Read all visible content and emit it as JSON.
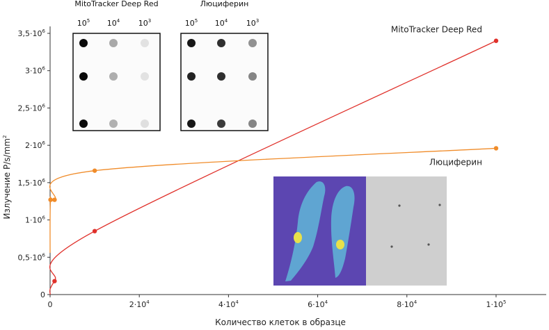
{
  "chart_data": {
    "type": "line",
    "xlabel": "Количество клеток в образце",
    "ylabel": "Излучение P/s/mm",
    "ylabel_exp": "2",
    "xlim": [
      0,
      105000
    ],
    "ylim": [
      0,
      3500000
    ],
    "x_ticks": [
      {
        "value": 0,
        "base": "0",
        "exp": ""
      },
      {
        "value": 20000,
        "base": "2·10",
        "exp": "4"
      },
      {
        "value": 40000,
        "base": "4·10",
        "exp": "4"
      },
      {
        "value": 60000,
        "base": "6·10",
        "exp": "4"
      },
      {
        "value": 80000,
        "base": "8·10",
        "exp": "4"
      },
      {
        "value": 100000,
        "base": "1·10",
        "exp": "5"
      }
    ],
    "y_ticks": [
      {
        "value": 0,
        "base": "0",
        "exp": ""
      },
      {
        "value": 500000,
        "base": "0,5·10",
        "exp": "6"
      },
      {
        "value": 1000000,
        "base": "1·10",
        "exp": "6"
      },
      {
        "value": 1500000,
        "base": "1,5·10",
        "exp": "6"
      },
      {
        "value": 2000000,
        "base": "2·10",
        "exp": "6"
      },
      {
        "value": 2500000,
        "base": "2,5·10",
        "exp": "6"
      },
      {
        "value": 3000000,
        "base": "3·10",
        "exp": "6"
      },
      {
        "value": 3500000,
        "base": "3,5·10",
        "exp": "6"
      }
    ],
    "series": [
      {
        "name": "MitoTracker Deep Red",
        "color": "#e0312b",
        "x": [
          0,
          1000,
          10000,
          100000
        ],
        "y": [
          0,
          180000,
          850000,
          3400000
        ]
      },
      {
        "name": "Люциферин",
        "color": "#f08c2a",
        "x": [
          0,
          100,
          1000,
          10000,
          100000
        ],
        "y": [
          560000,
          1270000,
          1270000,
          1660000,
          1960000
        ]
      }
    ],
    "insets": [
      {
        "title": "MitoTracker Deep Red",
        "columns": [
          {
            "base": "10",
            "exp": "5"
          },
          {
            "base": "10",
            "exp": "4"
          },
          {
            "base": "10",
            "exp": "3"
          }
        ],
        "row_intensity": [
          [
            1.0,
            0.35,
            0.12
          ],
          [
            1.0,
            0.33,
            0.12
          ],
          [
            1.0,
            0.32,
            0.13
          ]
        ]
      },
      {
        "title": "Люциферин",
        "columns": [
          {
            "base": "10",
            "exp": "5"
          },
          {
            "base": "10",
            "exp": "4"
          },
          {
            "base": "10",
            "exp": "3"
          }
        ],
        "row_intensity": [
          [
            0.95,
            0.85,
            0.45
          ],
          [
            0.9,
            0.85,
            0.5
          ],
          [
            0.95,
            0.8,
            0.5
          ]
        ]
      }
    ],
    "grid": false,
    "legend": "inline labels at line ends"
  },
  "colors": {
    "axis": "#333333",
    "imaging_bg": "#7a3fb0",
    "imaging_gray": "#c8c8c8"
  }
}
